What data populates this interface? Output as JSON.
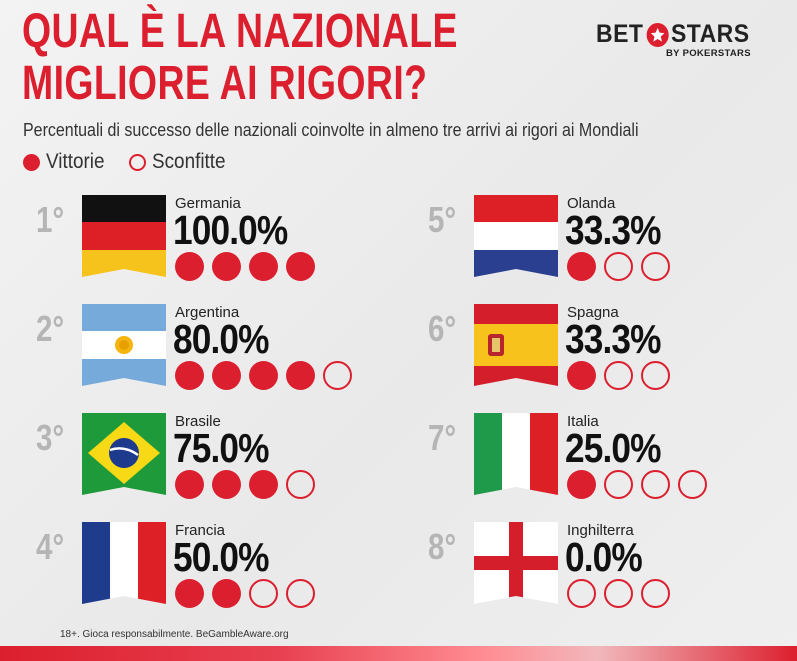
{
  "title": {
    "line1": "QUAL È LA NAZIONALE",
    "line2": "MIGLIORE AI RIGORI?"
  },
  "logo": {
    "part1": "BET",
    "part2": "STARS",
    "sub": "BY POKERSTARS",
    "brand_color": "#dc1f2e"
  },
  "subtitle": "Percentuali di successo delle nazionali coinvolte in almeno tre arrivi ai rigori ai Mondiali",
  "legend": {
    "win_label": "Vittorie",
    "loss_label": "Sconfitte"
  },
  "colors": {
    "accent": "#dc1f2e",
    "rank_gray": "#b5b5b5"
  },
  "ranking": [
    {
      "rank": "1°",
      "country": "Germania",
      "pct": "100.0%",
      "wins": 4,
      "losses": 0,
      "flag": "germany-flag"
    },
    {
      "rank": "2°",
      "country": "Argentina",
      "pct": "80.0%",
      "wins": 4,
      "losses": 1,
      "flag": "argentina-flag"
    },
    {
      "rank": "3°",
      "country": "Brasile",
      "pct": "75.0%",
      "wins": 3,
      "losses": 1,
      "flag": "brazil-flag"
    },
    {
      "rank": "4°",
      "country": "Francia",
      "pct": "50.0%",
      "wins": 2,
      "losses": 2,
      "flag": "france-flag"
    },
    {
      "rank": "5°",
      "country": "Olanda",
      "pct": "33.3%",
      "wins": 1,
      "losses": 2,
      "flag": "netherlands-flag"
    },
    {
      "rank": "6°",
      "country": "Spagna",
      "pct": "33.3%",
      "wins": 1,
      "losses": 2,
      "flag": "spain-flag"
    },
    {
      "rank": "7°",
      "country": "Italia",
      "pct": "25.0%",
      "wins": 1,
      "losses": 3,
      "flag": "italy-flag"
    },
    {
      "rank": "8°",
      "country": "Inghilterra",
      "pct": "0.0%",
      "wins": 0,
      "losses": 3,
      "flag": "england-flag"
    }
  ],
  "footer": "18+. Gioca responsabilmente. BeGambleAware.org"
}
